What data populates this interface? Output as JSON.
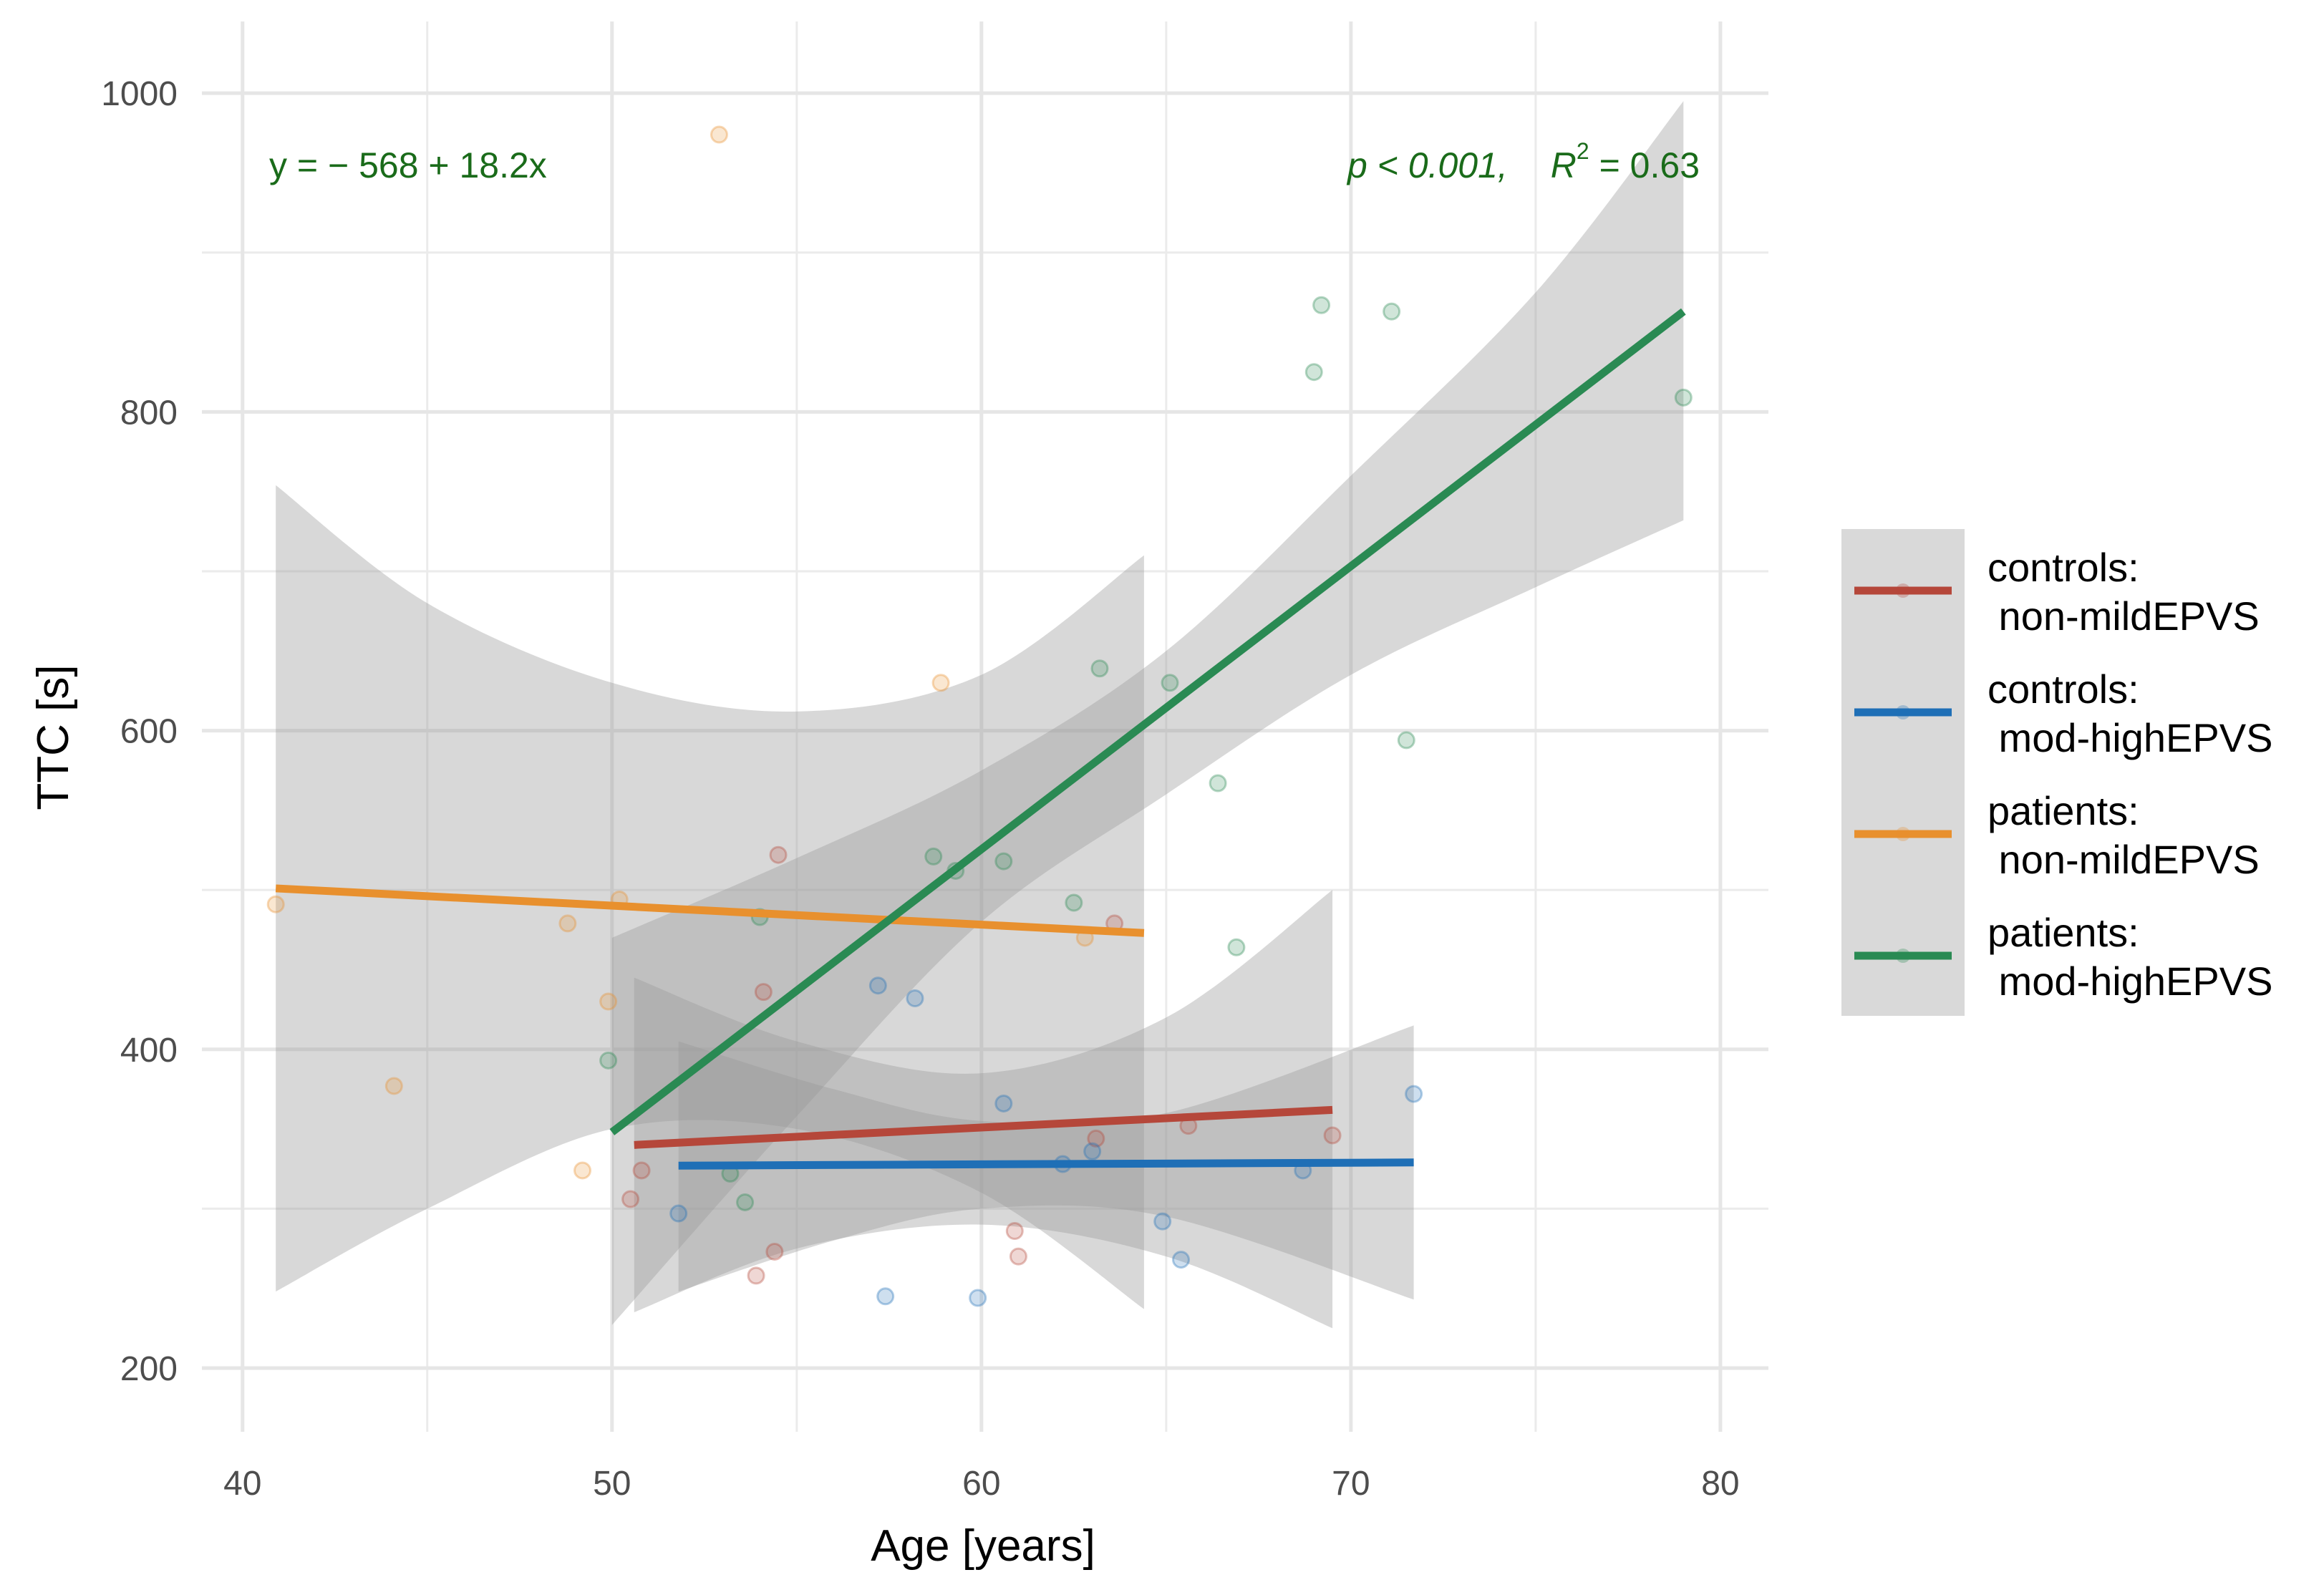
{
  "chart_data": {
    "type": "scatter",
    "title": "",
    "xlabel": "Age [years]",
    "ylabel": "TTC [s]",
    "xlim": [
      38.9,
      81.3
    ],
    "ylim": [
      160,
      1045
    ],
    "x_ticks": [
      40,
      50,
      60,
      70,
      80
    ],
    "y_ticks": [
      200,
      400,
      600,
      800,
      1000
    ],
    "grid": true,
    "legend_position": "right",
    "annotation_equation": "y = − 568 + 18.2x",
    "annotation_p": "p < 0.001,",
    "annotation_r2_prefix": "R",
    "annotation_r2_sup": "2",
    "annotation_r2_value": " = 0.63",
    "series": [
      {
        "name": "controls: non-mildEPVS",
        "legend_line1": "controls:",
        "legend_line2": " non-mildEPVS",
        "color": "#b5473a",
        "fit": {
          "x0": 50.6,
          "y0": 340,
          "x1": 69.5,
          "y1": 362
        },
        "ci_upper": [
          [
            50.6,
            445
          ],
          [
            55,
            405
          ],
          [
            60,
            385
          ],
          [
            65,
            420
          ],
          [
            69.5,
            500
          ]
        ],
        "ci_lower": [
          [
            50.6,
            235
          ],
          [
            55,
            275
          ],
          [
            60,
            290
          ],
          [
            65,
            270
          ],
          [
            69.5,
            225
          ]
        ],
        "points": [
          [
            50.5,
            306
          ],
          [
            50.8,
            324
          ],
          [
            53.9,
            258
          ],
          [
            54.1,
            436
          ],
          [
            54.4,
            273
          ],
          [
            54.5,
            522
          ],
          [
            60.9,
            286
          ],
          [
            61,
            270
          ],
          [
            63.1,
            344
          ],
          [
            63.6,
            479
          ],
          [
            65.6,
            352
          ],
          [
            69.5,
            346
          ]
        ]
      },
      {
        "name": "controls: mod-highEPVS",
        "legend_line1": "controls:",
        "legend_line2": " mod-highEPVS",
        "color": "#1f6fb6",
        "fit": {
          "x0": 51.8,
          "y0": 327,
          "x1": 71.7,
          "y1": 329
        },
        "ci_upper": [
          [
            51.8,
            405
          ],
          [
            56,
            375
          ],
          [
            60,
            355
          ],
          [
            65,
            360
          ],
          [
            71.7,
            415
          ]
        ],
        "ci_lower": [
          [
            51.8,
            248
          ],
          [
            56,
            280
          ],
          [
            60,
            300
          ],
          [
            65,
            295
          ],
          [
            71.7,
            243
          ]
        ],
        "points": [
          [
            51.8,
            297
          ],
          [
            57.2,
            440
          ],
          [
            57.4,
            245
          ],
          [
            58.2,
            432
          ],
          [
            59.9,
            244
          ],
          [
            60.6,
            366
          ],
          [
            62.2,
            328
          ],
          [
            63,
            336
          ],
          [
            64.9,
            292
          ],
          [
            65.4,
            268
          ],
          [
            68.7,
            324
          ],
          [
            71.7,
            372
          ]
        ]
      },
      {
        "name": "patients: non-mildEPVS",
        "legend_line1": "patients:",
        "legend_line2": " non-mildEPVS",
        "color": "#e8902e",
        "fit": {
          "x0": 40.9,
          "y0": 501,
          "x1": 64.4,
          "y1": 473
        },
        "ci_upper": [
          [
            40.9,
            754
          ],
          [
            45,
            680
          ],
          [
            50,
            630
          ],
          [
            55,
            612
          ],
          [
            60,
            635
          ],
          [
            64.4,
            710
          ]
        ],
        "ci_lower": [
          [
            40.9,
            248
          ],
          [
            45,
            300
          ],
          [
            50,
            350
          ],
          [
            55,
            350
          ],
          [
            60,
            310
          ],
          [
            64.4,
            237
          ]
        ],
        "points": [
          [
            40.9,
            491
          ],
          [
            44.1,
            377
          ],
          [
            48.8,
            479
          ],
          [
            49.2,
            324
          ],
          [
            49.9,
            430
          ],
          [
            50.2,
            494
          ],
          [
            52.9,
            974
          ],
          [
            58.9,
            630
          ],
          [
            62.8,
            470
          ]
        ]
      },
      {
        "name": "patients: mod-highEPVS",
        "legend_line1": "patients:",
        "legend_line2": " mod-highEPVS",
        "color": "#2a8a53",
        "fit": {
          "x0": 50,
          "y0": 348,
          "x1": 79,
          "y1": 863
        },
        "ci_upper": [
          [
            50,
            470
          ],
          [
            55,
            520
          ],
          [
            60,
            575
          ],
          [
            65,
            650
          ],
          [
            70,
            760
          ],
          [
            75,
            875
          ],
          [
            79,
            995
          ]
        ],
        "ci_lower": [
          [
            50,
            227
          ],
          [
            55,
            358
          ],
          [
            60,
            480
          ],
          [
            65,
            560
          ],
          [
            70,
            635
          ],
          [
            75,
            690
          ],
          [
            79,
            732
          ]
        ],
        "points": [
          [
            49.9,
            393
          ],
          [
            53.2,
            322
          ],
          [
            53.6,
            304
          ],
          [
            54,
            483
          ],
          [
            58.7,
            521
          ],
          [
            59.3,
            512
          ],
          [
            60.6,
            518
          ],
          [
            62.5,
            492
          ],
          [
            63.2,
            639
          ],
          [
            65.1,
            630
          ],
          [
            66.4,
            567
          ],
          [
            66.9,
            464
          ],
          [
            69,
            825
          ],
          [
            69.2,
            867
          ],
          [
            71.1,
            863
          ],
          [
            71.5,
            594
          ],
          [
            79,
            809
          ]
        ]
      }
    ]
  }
}
